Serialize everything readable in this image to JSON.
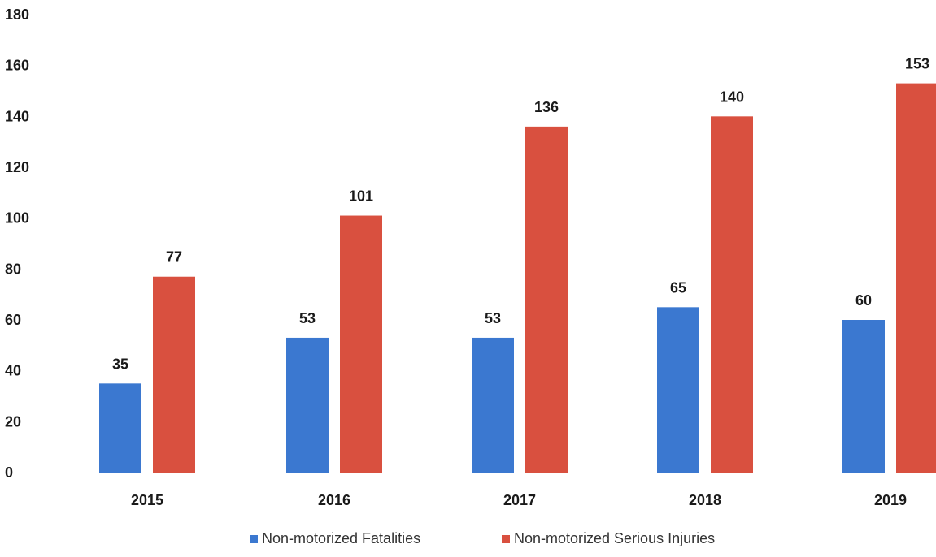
{
  "chart_data": {
    "type": "bar",
    "categories": [
      "2015",
      "2016",
      "2017",
      "2018",
      "2019"
    ],
    "series": [
      {
        "name": "Non-motorized Fatalities",
        "values": [
          35,
          53,
          53,
          65,
          60
        ],
        "color": "#3b78d0"
      },
      {
        "name": "Non-motorized Serious Injuries",
        "values": [
          77,
          101,
          136,
          140,
          153
        ],
        "color": "#d9503f"
      }
    ],
    "y_ticks": [
      "0",
      "20",
      "40",
      "60",
      "80",
      "100",
      "120",
      "140",
      "160",
      "180"
    ],
    "ylim": [
      0,
      180
    ],
    "grid": false,
    "legend_position": "bottom-center",
    "title": "",
    "xlabel": "",
    "ylabel": ""
  }
}
